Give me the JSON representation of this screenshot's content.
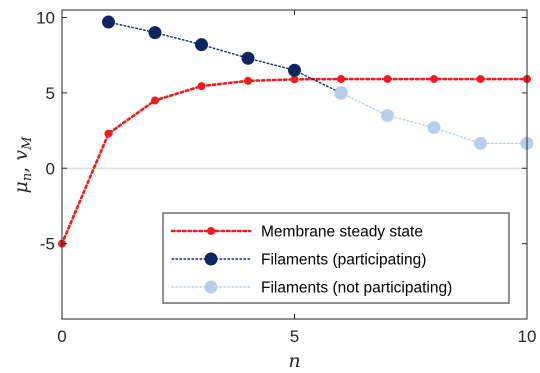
{
  "chart_data": {
    "type": "line",
    "xlabel": "n",
    "ylabel": "μn, vM",
    "xlim": [
      0,
      10
    ],
    "ylim": [
      -10,
      10.5
    ],
    "xticks": [
      0,
      5,
      10
    ],
    "xtick_labels": [
      "0",
      "5",
      "10"
    ],
    "yticks": [
      -5,
      0,
      5,
      10
    ],
    "ytick_labels": [
      "-5",
      "0",
      "5",
      "10"
    ],
    "reference_line": 0,
    "grid": false,
    "legend_position": "bottom-right",
    "series": [
      {
        "name": "Membrane steady state",
        "color": "#ee1c1c",
        "line_style": "dotted",
        "marker_size": "small",
        "x": [
          0,
          1,
          2,
          3,
          4,
          5,
          6,
          7,
          8,
          9,
          10
        ],
        "y": [
          -5,
          2.3,
          4.5,
          5.45,
          5.8,
          5.9,
          5.92,
          5.92,
          5.92,
          5.92,
          5.92
        ]
      },
      {
        "name": "Filaments (participating)",
        "color": "#0b2663",
        "line_style": "dotted",
        "marker_size": "large",
        "x": [
          1,
          2,
          3,
          4,
          5,
          6
        ],
        "y": [
          9.7,
          9.0,
          8.2,
          7.3,
          6.5,
          5.0
        ]
      },
      {
        "name": "Filaments (not participating)",
        "color": "#b8cfe9",
        "line_style": "dotted",
        "marker_size": "large",
        "x": [
          6,
          7,
          8,
          9,
          10
        ],
        "y": [
          5.0,
          3.5,
          2.7,
          1.65,
          1.65
        ]
      }
    ]
  }
}
